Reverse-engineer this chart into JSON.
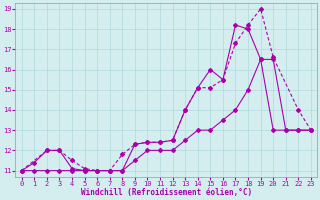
{
  "xlabel": "Windchill (Refroidissement éolien,°C)",
  "xlim": [
    -0.5,
    23.5
  ],
  "ylim": [
    10.7,
    19.3
  ],
  "yticks": [
    11,
    12,
    13,
    14,
    15,
    16,
    17,
    18,
    19
  ],
  "xticks": [
    0,
    1,
    2,
    3,
    4,
    5,
    6,
    7,
    8,
    9,
    10,
    11,
    12,
    13,
    14,
    15,
    16,
    17,
    18,
    19,
    20,
    21,
    22,
    23
  ],
  "bg_color": "#d4eef0",
  "grid_color": "#b0d8dc",
  "line_color": "#aa00aa",
  "line1_x": [
    0,
    1,
    2,
    3,
    4,
    5,
    6,
    7,
    8,
    9,
    10,
    11,
    12,
    13,
    14,
    15,
    16,
    17,
    18,
    19,
    20,
    21,
    22,
    23
  ],
  "line1_y": [
    11.0,
    11.4,
    12.0,
    12.0,
    11.1,
    11.0,
    11.0,
    11.0,
    11.0,
    12.3,
    12.4,
    12.4,
    12.5,
    14.0,
    15.1,
    16.0,
    15.5,
    18.2,
    18.0,
    16.5,
    16.5,
    13.0,
    13.0,
    13.0
  ],
  "line2_x": [
    0,
    2,
    3,
    4,
    5,
    6,
    7,
    8,
    9,
    10,
    11,
    12,
    13,
    14,
    15,
    16,
    17,
    18,
    19,
    20,
    22,
    23
  ],
  "line2_y": [
    11.0,
    12.0,
    12.0,
    11.5,
    11.1,
    11.0,
    11.0,
    11.8,
    12.3,
    12.4,
    12.4,
    12.5,
    14.0,
    15.1,
    15.1,
    15.5,
    17.3,
    18.2,
    19.0,
    16.6,
    14.0,
    13.0
  ],
  "line3_x": [
    0,
    1,
    2,
    3,
    4,
    5,
    6,
    7,
    8,
    9,
    10,
    11,
    12,
    13,
    14,
    15,
    16,
    17,
    18,
    19,
    20,
    21,
    22,
    23
  ],
  "line3_y": [
    11.0,
    11.0,
    11.0,
    11.0,
    11.0,
    11.0,
    11.0,
    11.0,
    11.0,
    11.5,
    12.0,
    12.0,
    12.0,
    12.5,
    13.0,
    13.0,
    13.5,
    14.0,
    15.0,
    16.5,
    13.0,
    13.0,
    13.0,
    13.0
  ]
}
